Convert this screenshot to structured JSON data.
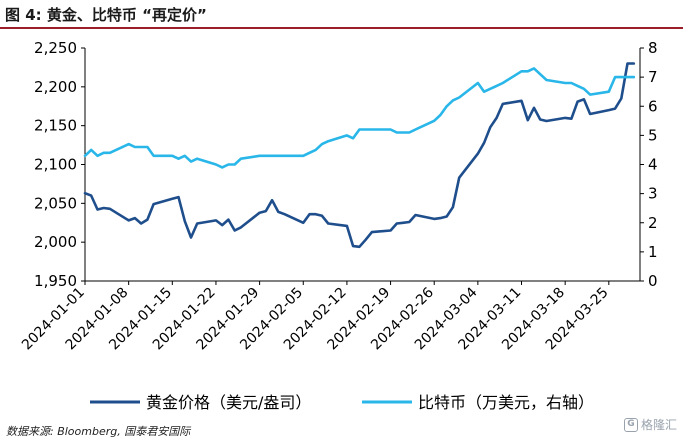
{
  "title": "图 4: 黄金、比特币 “再定价”",
  "source": "数据来源: Bloomberg, 国泰君安国际",
  "watermark": {
    "logo_text": "G",
    "label": "格隆汇"
  },
  "colors": {
    "gold_line": "#1f4e8c",
    "btc_line": "#29b6e8",
    "title_rule": "#9a1f2b",
    "axis": "#000000"
  },
  "chart_data": {
    "type": "line",
    "grid": false,
    "legend_position": "bottom",
    "y_left": {
      "ticks": [
        "1,950",
        "2,000",
        "2,050",
        "2,100",
        "2,150",
        "2,200",
        "2,250"
      ],
      "range": [
        1950,
        2250
      ]
    },
    "y_right": {
      "ticks": [
        "0",
        "1",
        "2",
        "3",
        "4",
        "5",
        "6",
        "7",
        "8"
      ],
      "range": [
        0,
        8
      ]
    },
    "x_ticks": [
      "2024-01-01",
      "2024-01-08",
      "2024-01-15",
      "2024-01-22",
      "2024-01-29",
      "2024-02-05",
      "2024-02-12",
      "2024-02-19",
      "2024-02-26",
      "2024-03-04",
      "2024-03-11",
      "2024-03-18",
      "2024-03-25"
    ],
    "series": [
      {
        "name": "黄金价格（美元/盎司）",
        "axis": "left",
        "x": [
          "2024-01-01",
          "2024-01-02",
          "2024-01-03",
          "2024-01-04",
          "2024-01-05",
          "2024-01-08",
          "2024-01-09",
          "2024-01-10",
          "2024-01-11",
          "2024-01-12",
          "2024-01-15",
          "2024-01-16",
          "2024-01-17",
          "2024-01-18",
          "2024-01-19",
          "2024-01-22",
          "2024-01-23",
          "2024-01-24",
          "2024-01-25",
          "2024-01-26",
          "2024-01-29",
          "2024-01-30",
          "2024-01-31",
          "2024-02-01",
          "2024-02-02",
          "2024-02-05",
          "2024-02-06",
          "2024-02-07",
          "2024-02-08",
          "2024-02-09",
          "2024-02-12",
          "2024-02-13",
          "2024-02-14",
          "2024-02-15",
          "2024-02-16",
          "2024-02-19",
          "2024-02-20",
          "2024-02-21",
          "2024-02-22",
          "2024-02-23",
          "2024-02-26",
          "2024-02-27",
          "2024-02-28",
          "2024-02-29",
          "2024-03-01",
          "2024-03-04",
          "2024-03-05",
          "2024-03-06",
          "2024-03-07",
          "2024-03-08",
          "2024-03-11",
          "2024-03-12",
          "2024-03-13",
          "2024-03-14",
          "2024-03-15",
          "2024-03-18",
          "2024-03-19",
          "2024-03-20",
          "2024-03-21",
          "2024-03-22",
          "2024-03-25",
          "2024-03-26",
          "2024-03-27",
          "2024-03-28",
          "2024-03-29"
        ],
        "values": [
          2063,
          2060,
          2042,
          2044,
          2043,
          2028,
          2031,
          2024,
          2029,
          2049,
          2056,
          2058,
          2027,
          2006,
          2024,
          2028,
          2022,
          2029,
          2015,
          2019,
          2038,
          2040,
          2054,
          2039,
          2036,
          2025,
          2036,
          2036,
          2034,
          2024,
          2021,
          1995,
          1994,
          2003,
          2013,
          2015,
          2024,
          2025,
          2026,
          2035,
          2030,
          2031,
          2033,
          2045,
          2083,
          2114,
          2128,
          2148,
          2160,
          2178,
          2182,
          2157,
          2173,
          2158,
          2156,
          2160,
          2159,
          2181,
          2184,
          2165,
          2170,
          2172,
          2185,
          2230,
          2230
        ],
        "color": "#1f4e8c"
      },
      {
        "name": "比特币（万美元，右轴）",
        "axis": "right",
        "x": [
          "2024-01-01",
          "2024-01-02",
          "2024-01-03",
          "2024-01-04",
          "2024-01-05",
          "2024-01-08",
          "2024-01-09",
          "2024-01-10",
          "2024-01-11",
          "2024-01-12",
          "2024-01-15",
          "2024-01-16",
          "2024-01-17",
          "2024-01-18",
          "2024-01-19",
          "2024-01-22",
          "2024-01-23",
          "2024-01-24",
          "2024-01-25",
          "2024-01-26",
          "2024-01-29",
          "2024-01-30",
          "2024-01-31",
          "2024-02-01",
          "2024-02-02",
          "2024-02-05",
          "2024-02-06",
          "2024-02-07",
          "2024-02-08",
          "2024-02-09",
          "2024-02-12",
          "2024-02-13",
          "2024-02-14",
          "2024-02-15",
          "2024-02-16",
          "2024-02-19",
          "2024-02-20",
          "2024-02-21",
          "2024-02-22",
          "2024-02-23",
          "2024-02-26",
          "2024-02-27",
          "2024-02-28",
          "2024-02-29",
          "2024-03-01",
          "2024-03-04",
          "2024-03-05",
          "2024-03-06",
          "2024-03-07",
          "2024-03-08",
          "2024-03-11",
          "2024-03-12",
          "2024-03-13",
          "2024-03-14",
          "2024-03-15",
          "2024-03-18",
          "2024-03-19",
          "2024-03-20",
          "2024-03-21",
          "2024-03-22",
          "2024-03-25",
          "2024-03-26",
          "2024-03-27",
          "2024-03-28",
          "2024-03-29"
        ],
        "values": [
          4.3,
          4.5,
          4.3,
          4.4,
          4.4,
          4.7,
          4.6,
          4.6,
          4.6,
          4.3,
          4.3,
          4.2,
          4.3,
          4.1,
          4.2,
          4.0,
          3.9,
          4.0,
          4.0,
          4.2,
          4.3,
          4.3,
          4.3,
          4.3,
          4.3,
          4.3,
          4.4,
          4.5,
          4.7,
          4.8,
          5.0,
          4.9,
          5.2,
          5.2,
          5.2,
          5.2,
          5.1,
          5.1,
          5.1,
          5.2,
          5.5,
          5.7,
          6.0,
          6.2,
          6.3,
          6.8,
          6.5,
          6.6,
          6.7,
          6.8,
          7.2,
          7.2,
          7.3,
          7.1,
          6.9,
          6.8,
          6.8,
          6.7,
          6.6,
          6.4,
          6.5,
          7.0,
          7.0,
          7.0,
          7.0
        ],
        "color": "#29b6e8"
      }
    ]
  }
}
